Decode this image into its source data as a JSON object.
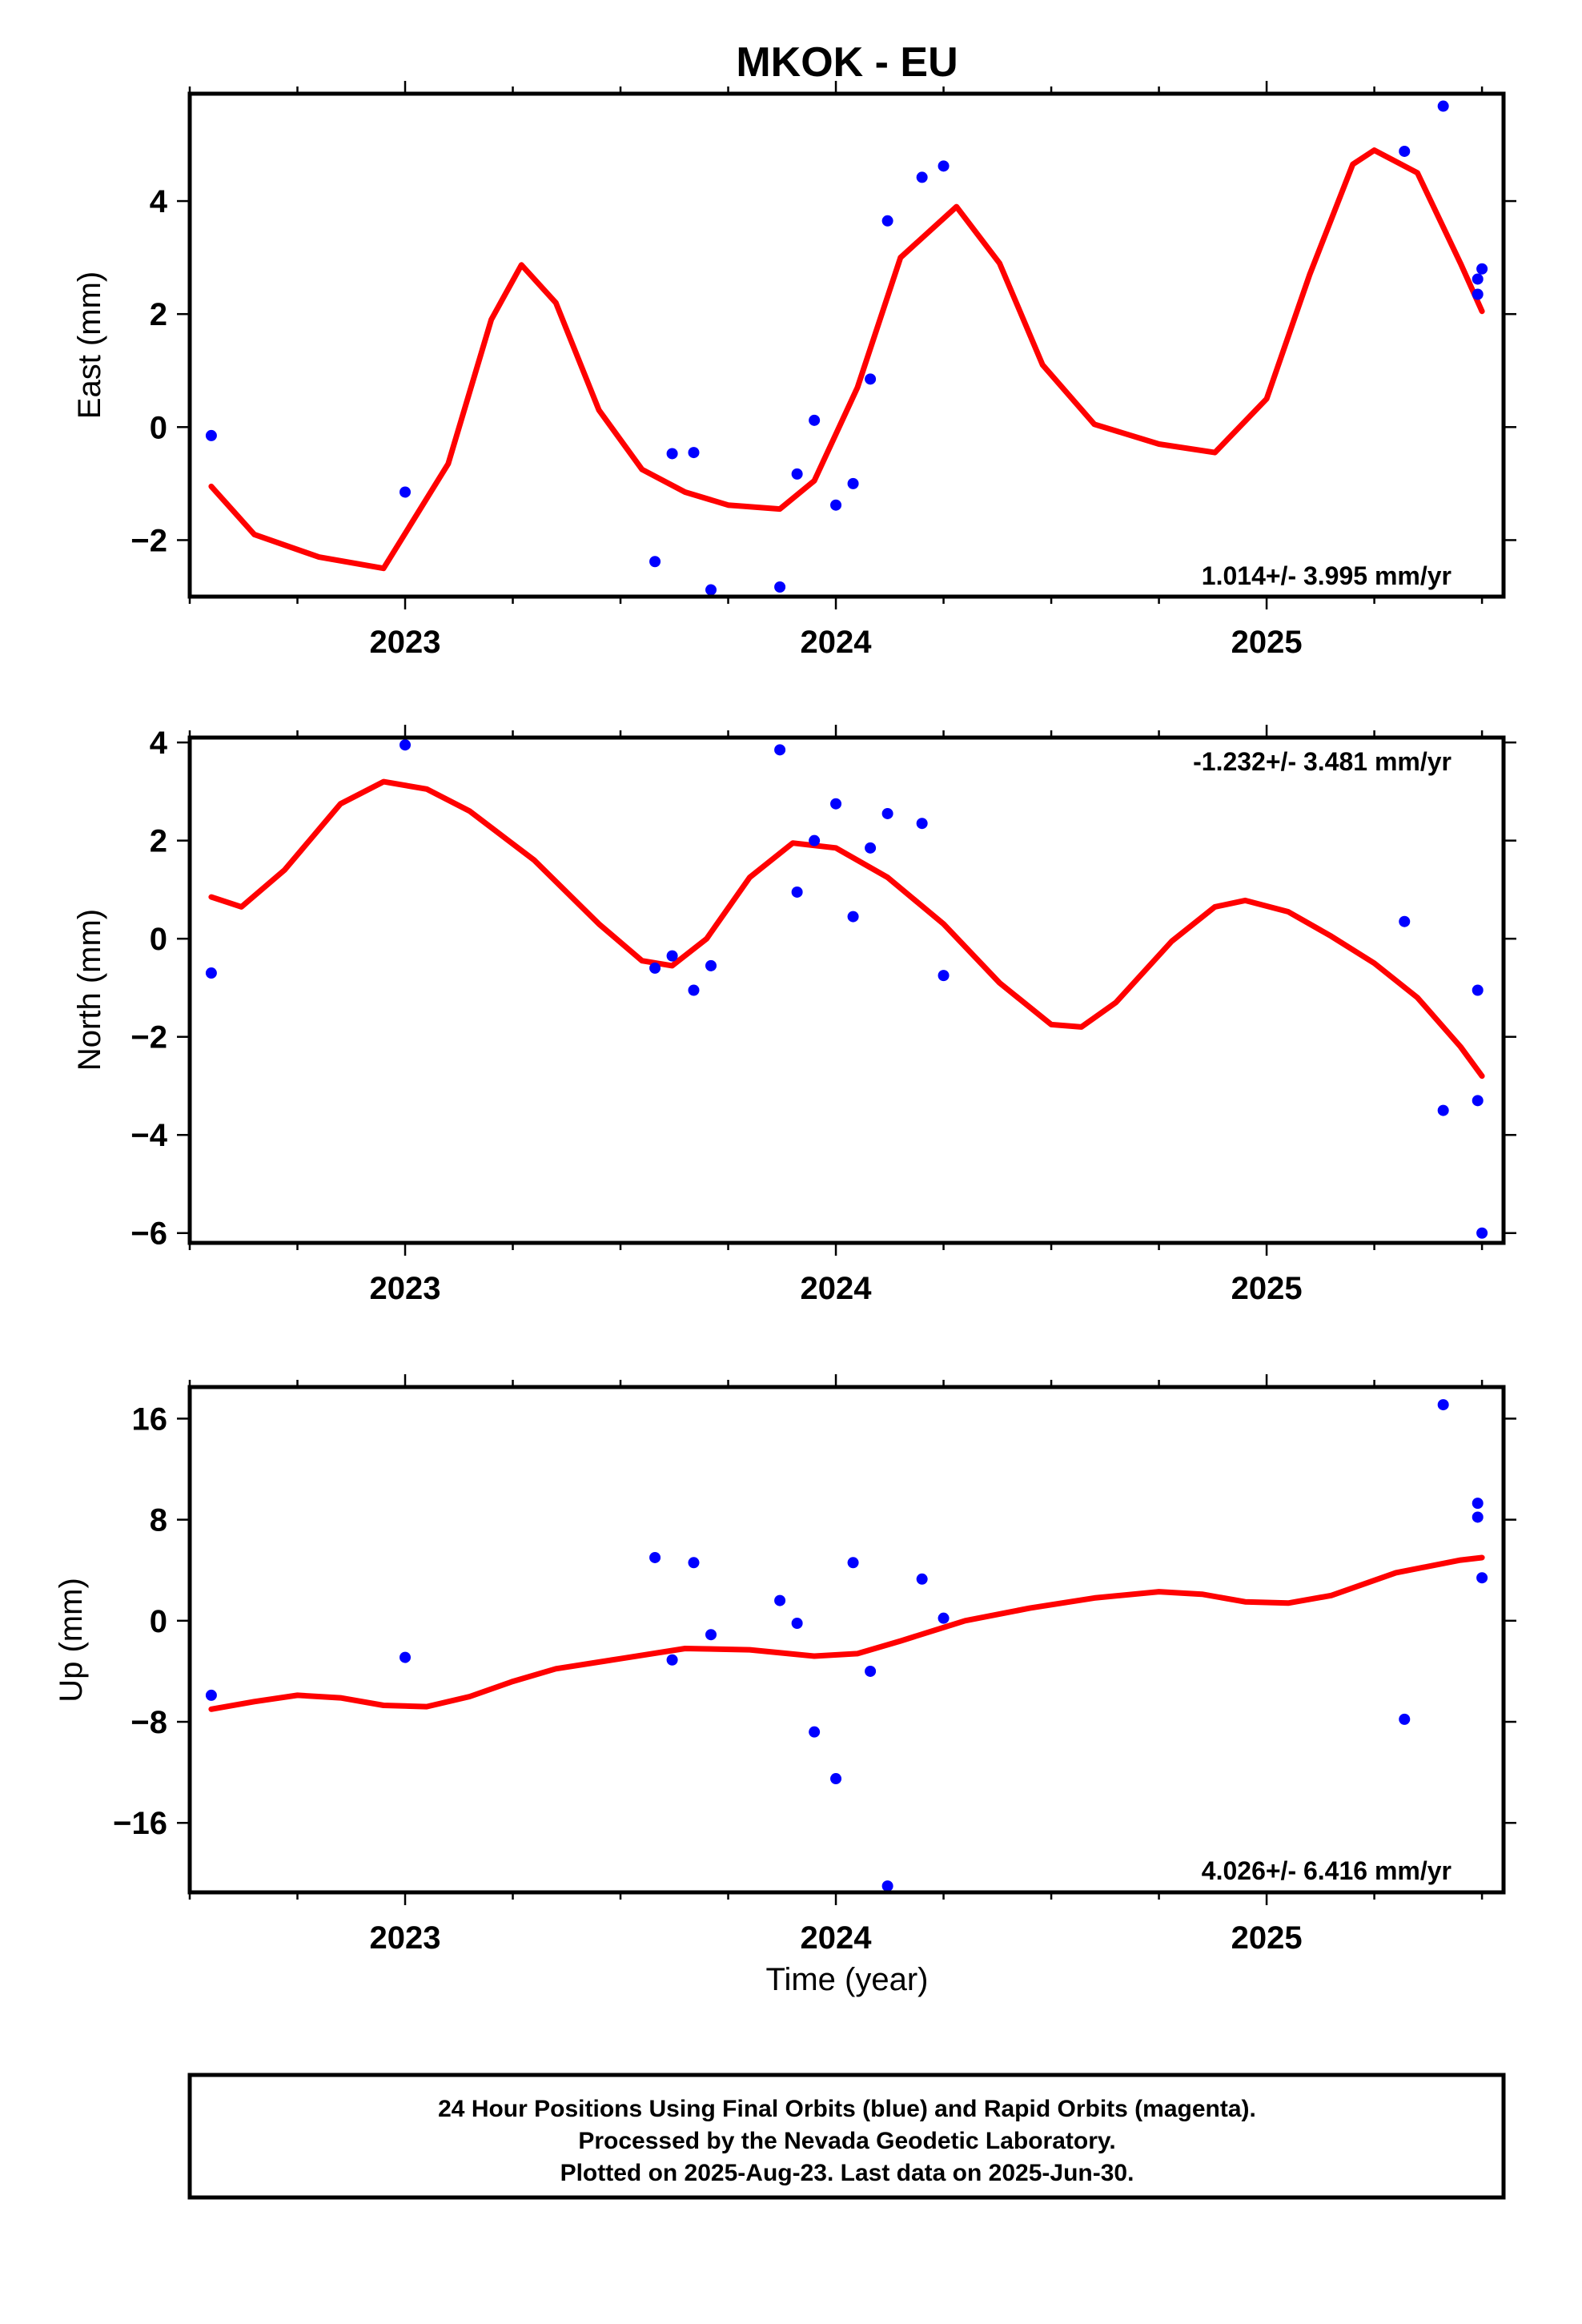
{
  "figure": {
    "title": "MKOK - EU",
    "xlabel": "Time (year)",
    "footer": [
      "24 Hour Positions Using Final Orbits (blue) and Rapid Orbits (magenta).",
      "Processed by the Nevada Geodetic Laboratory.",
      "Plotted on 2025-Aug-23. Last data on 2025-Jun-30."
    ]
  },
  "colors": {
    "final_orbits": "#0000ff",
    "fit_line": "#ff0000",
    "frame": "#000000"
  },
  "chart_data": [
    {
      "type": "scatter",
      "panel": "east",
      "ylabel": "East (mm)",
      "xlim": [
        2022.5,
        2025.55
      ],
      "ylim": [
        -3.0,
        5.9
      ],
      "x_ticks": [
        2023,
        2024,
        2025
      ],
      "y_ticks": [
        -2,
        0,
        2,
        4
      ],
      "rate_text": "1.014+/- 3.995 mm/yr",
      "rate_position": "bottom-right",
      "series": [
        {
          "kind": "points",
          "x": [
            2022.55,
            2023.0,
            2023.58,
            2023.62,
            2023.67,
            2023.71,
            2023.87,
            2023.91,
            2023.95,
            2024.0,
            2024.04,
            2024.08,
            2024.12,
            2024.2,
            2024.25,
            2025.32,
            2025.41,
            2025.49,
            2025.49,
            2025.5
          ],
          "y": [
            -0.15,
            -1.15,
            -2.38,
            -0.47,
            -0.45,
            -2.88,
            -2.83,
            -0.83,
            0.12,
            -1.38,
            -1.0,
            0.85,
            3.65,
            4.42,
            4.62,
            4.88,
            5.68,
            2.35,
            2.62,
            2.8
          ]
        },
        {
          "kind": "fit",
          "x": [
            2022.55,
            2022.65,
            2022.8,
            2022.95,
            2023.1,
            2023.2,
            2023.27,
            2023.35,
            2023.45,
            2023.55,
            2023.65,
            2023.75,
            2023.87,
            2023.95,
            2024.05,
            2024.15,
            2024.28,
            2024.38,
            2024.48,
            2024.6,
            2024.75,
            2024.88,
            2025.0,
            2025.1,
            2025.2,
            2025.25,
            2025.35,
            2025.45,
            2025.5
          ],
          "y": [
            -1.05,
            -1.9,
            -2.3,
            -2.5,
            -0.65,
            1.9,
            2.87,
            2.2,
            0.3,
            -0.75,
            -1.15,
            -1.38,
            -1.45,
            -0.95,
            0.7,
            3.0,
            3.9,
            2.9,
            1.1,
            0.05,
            -0.3,
            -0.45,
            0.5,
            2.7,
            4.65,
            4.9,
            4.5,
            2.9,
            2.05
          ]
        }
      ]
    },
    {
      "type": "scatter",
      "panel": "north",
      "ylabel": "North (mm)",
      "xlim": [
        2022.5,
        2025.55
      ],
      "ylim": [
        -6.2,
        4.1
      ],
      "x_ticks": [
        2023,
        2024,
        2025
      ],
      "y_ticks": [
        -6,
        -4,
        -2,
        0,
        2,
        4
      ],
      "rate_text": "-1.232+/- 3.481 mm/yr",
      "rate_position": "top-right",
      "series": [
        {
          "kind": "points",
          "x": [
            2022.55,
            2023.0,
            2023.58,
            2023.62,
            2023.67,
            2023.71,
            2023.87,
            2023.91,
            2023.95,
            2024.0,
            2024.04,
            2024.08,
            2024.12,
            2024.2,
            2024.25,
            2025.32,
            2025.41,
            2025.49,
            2025.49,
            2025.5
          ],
          "y": [
            -0.7,
            3.95,
            -0.6,
            -0.35,
            -1.05,
            -0.55,
            3.85,
            0.95,
            2.0,
            2.75,
            0.45,
            1.85,
            2.55,
            2.35,
            -0.75,
            0.35,
            -3.5,
            -3.3,
            -1.05,
            -6.0
          ]
        },
        {
          "kind": "fit",
          "x": [
            2022.55,
            2022.62,
            2022.72,
            2022.85,
            2022.95,
            2023.05,
            2023.15,
            2023.3,
            2023.45,
            2023.55,
            2023.62,
            2023.7,
            2023.8,
            2023.9,
            2024.0,
            2024.12,
            2024.25,
            2024.38,
            2024.5,
            2024.57,
            2024.65,
            2024.78,
            2024.88,
            2024.95,
            2025.05,
            2025.15,
            2025.25,
            2025.35,
            2025.45,
            2025.5
          ],
          "y": [
            0.85,
            0.65,
            1.4,
            2.75,
            3.2,
            3.05,
            2.6,
            1.6,
            0.3,
            -0.45,
            -0.55,
            0.0,
            1.25,
            1.95,
            1.85,
            1.25,
            0.3,
            -0.9,
            -1.75,
            -1.8,
            -1.3,
            -0.05,
            0.65,
            0.78,
            0.55,
            0.05,
            -0.5,
            -1.2,
            -2.2,
            -2.8
          ]
        }
      ]
    },
    {
      "type": "scatter",
      "panel": "up",
      "ylabel": "Up (mm)",
      "xlim": [
        2022.5,
        2025.55
      ],
      "ylim": [
        -21.5,
        18.5
      ],
      "x_ticks": [
        2023,
        2024,
        2025
      ],
      "y_ticks": [
        -16,
        -8,
        0,
        8,
        16
      ],
      "rate_text": "4.026+/- 6.416 mm/yr",
      "rate_position": "bottom-right",
      "series": [
        {
          "kind": "points",
          "x": [
            2022.55,
            2023.0,
            2023.58,
            2023.62,
            2023.67,
            2023.71,
            2023.87,
            2023.91,
            2023.95,
            2024.0,
            2024.04,
            2024.08,
            2024.12,
            2024.2,
            2024.25,
            2025.32,
            2025.41,
            2025.49,
            2025.49,
            2025.5
          ],
          "y": [
            -5.9,
            -2.9,
            5.0,
            -3.1,
            4.6,
            -1.1,
            1.6,
            -0.2,
            -8.8,
            -12.5,
            4.6,
            -4.0,
            -21.0,
            3.3,
            0.2,
            -7.8,
            17.1,
            9.3,
            8.2,
            3.4
          ]
        },
        {
          "kind": "fit",
          "x": [
            2022.55,
            2022.65,
            2022.75,
            2022.85,
            2022.95,
            2023.05,
            2023.15,
            2023.25,
            2023.35,
            2023.5,
            2023.65,
            2023.8,
            2023.95,
            2024.05,
            2024.15,
            2024.3,
            2024.45,
            2024.6,
            2024.75,
            2024.85,
            2024.95,
            2025.05,
            2025.15,
            2025.3,
            2025.45,
            2025.5
          ],
          "y": [
            -7.0,
            -6.4,
            -5.9,
            -6.1,
            -6.7,
            -6.8,
            -6.0,
            -4.8,
            -3.8,
            -3.0,
            -2.2,
            -2.3,
            -2.8,
            -2.6,
            -1.6,
            0.0,
            1.0,
            1.8,
            2.3,
            2.1,
            1.5,
            1.4,
            2.0,
            3.8,
            4.8,
            5.0
          ]
        }
      ]
    }
  ]
}
